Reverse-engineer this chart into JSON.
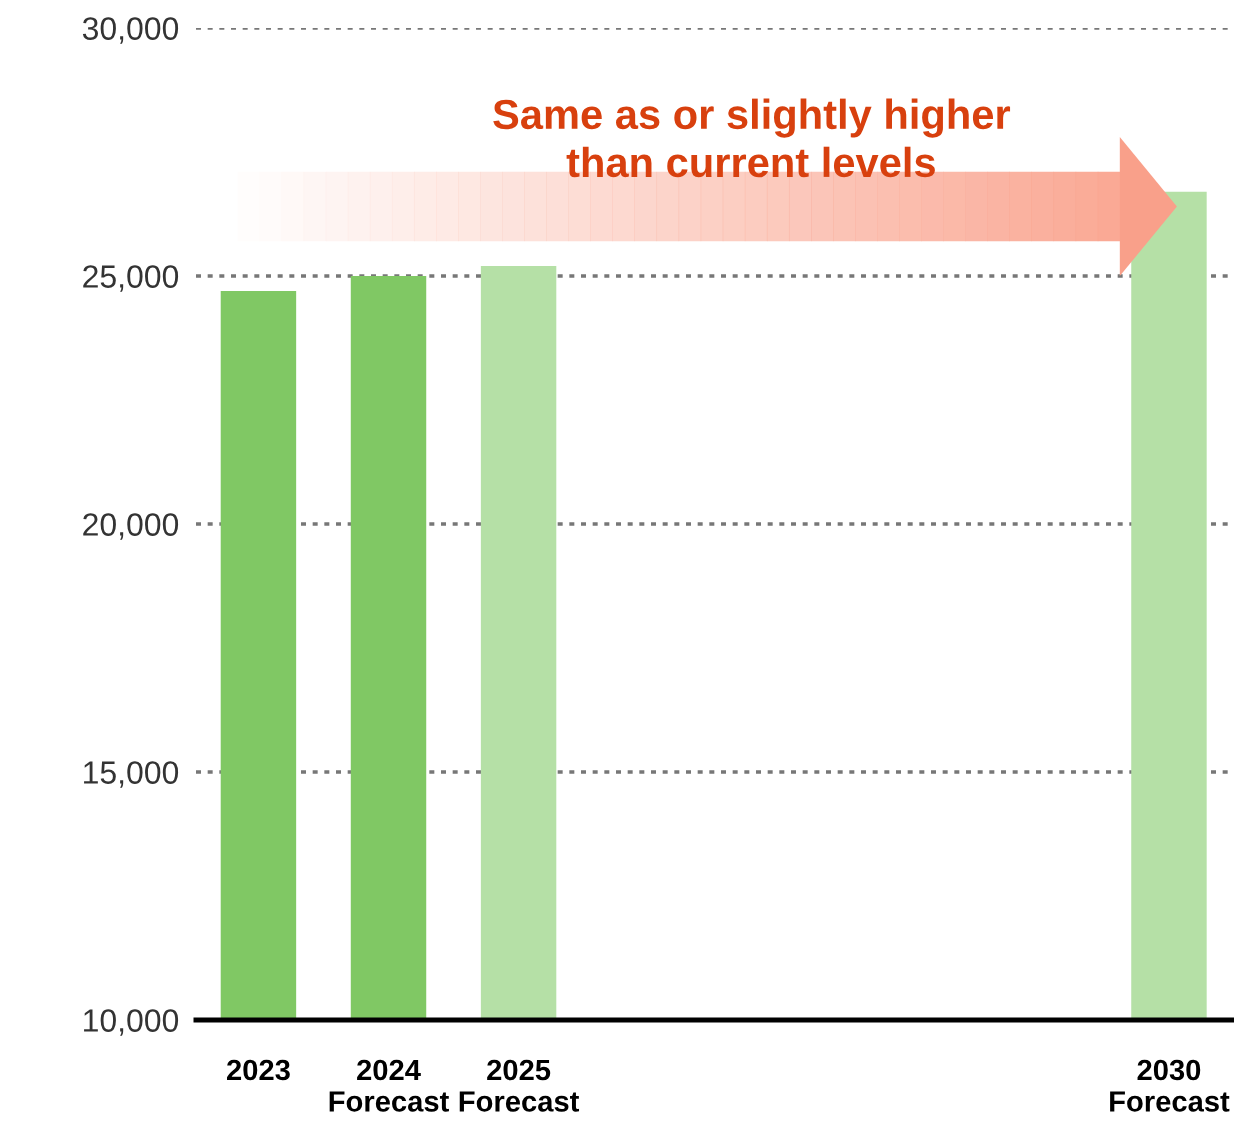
{
  "chart_data": {
    "type": "bar",
    "categories": [
      "2023",
      "2024\nForecast",
      "2025\nForecast",
      null,
      null,
      null,
      null,
      "2030\nForecast"
    ],
    "values": [
      24700,
      25000,
      25200,
      null,
      null,
      null,
      null,
      26700
    ],
    "colors": [
      "#80c864",
      "#80c864",
      "#b5e0a6",
      null,
      null,
      null,
      null,
      "#b5e0a6"
    ],
    "ylim": [
      10000,
      30000
    ],
    "yticks": [
      {
        "value": 10000,
        "label": "10,000"
      },
      {
        "value": 15000,
        "label": "15,000"
      },
      {
        "value": 20000,
        "label": "20,000"
      },
      {
        "value": 25000,
        "label": "25,000"
      },
      {
        "value": 30000,
        "label": "30,000"
      }
    ],
    "grid": "y",
    "annotations": [
      "Same as or slightly higher\nthan current levels"
    ]
  }
}
